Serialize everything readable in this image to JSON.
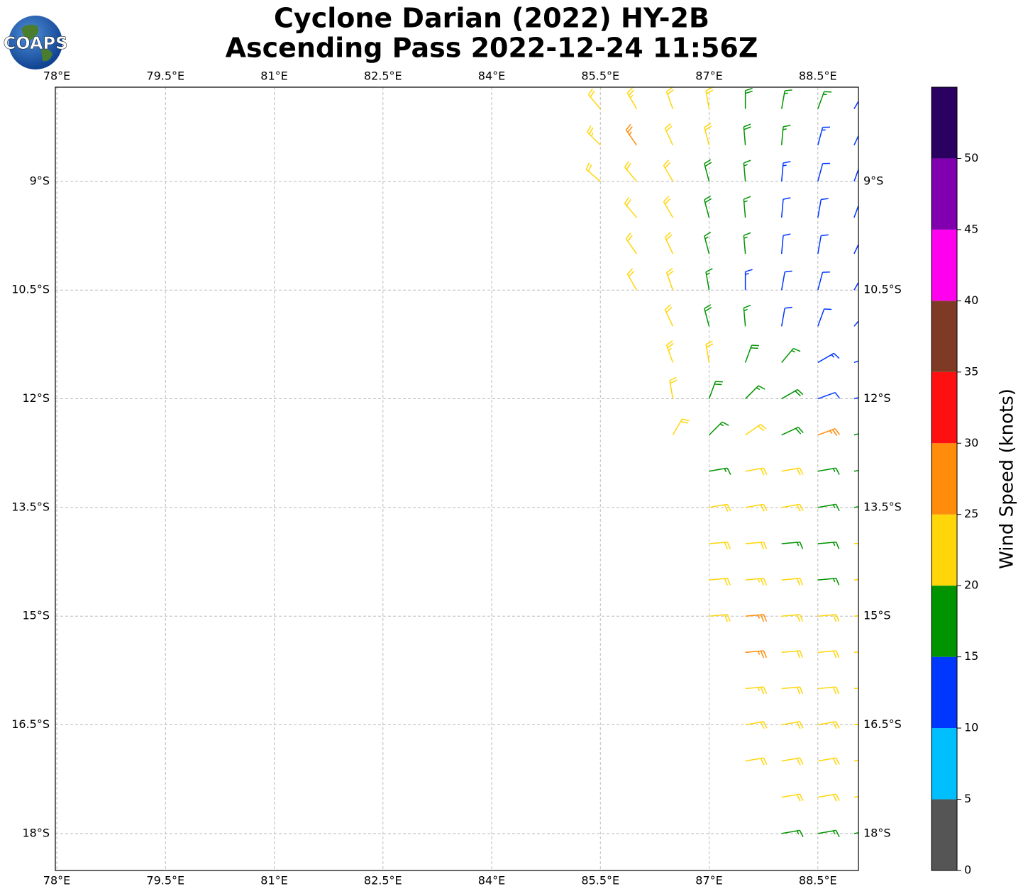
{
  "header": {
    "title": "Cyclone Darian (2022) HY-2B",
    "subtitle": "Ascending Pass 2022-12-24 11:56Z",
    "logo": "COAPS"
  },
  "map": {
    "xlim": [
      77.98,
      89.06
    ],
    "ylim": [
      -18.51,
      -7.7
    ],
    "xticks": [
      {
        "value": 78,
        "label": "78°E"
      },
      {
        "value": 79.5,
        "label": "79.5°E"
      },
      {
        "value": 81,
        "label": "81°E"
      },
      {
        "value": 82.5,
        "label": "82.5°E"
      },
      {
        "value": 84,
        "label": "84°E"
      },
      {
        "value": 85.5,
        "label": "85.5°E"
      },
      {
        "value": 87,
        "label": "87°E"
      },
      {
        "value": 88.5,
        "label": "88.5°E"
      }
    ],
    "yticks": [
      {
        "value": -9,
        "label": "9°S"
      },
      {
        "value": -10.5,
        "label": "10.5°S"
      },
      {
        "value": -12,
        "label": "12°S"
      },
      {
        "value": -13.5,
        "label": "13.5°S"
      },
      {
        "value": -15,
        "label": "15°S"
      },
      {
        "value": -16.5,
        "label": "16.5°S"
      },
      {
        "value": -18,
        "label": "18°S"
      }
    ],
    "grid": true,
    "barbs": [
      [
        85.5,
        -8,
        22,
        320
      ],
      [
        86,
        -8,
        23,
        330
      ],
      [
        86.5,
        -8,
        22,
        340
      ],
      [
        87,
        -8,
        20,
        350
      ],
      [
        87.5,
        -8,
        18,
        0
      ],
      [
        88,
        -8,
        17,
        10
      ],
      [
        88.5,
        -8,
        16,
        20
      ],
      [
        89,
        -8,
        14,
        30
      ],
      [
        85.5,
        -8.5,
        23,
        315
      ],
      [
        86,
        -8.5,
        27,
        325
      ],
      [
        86.5,
        -8.5,
        22,
        335
      ],
      [
        87,
        -8.5,
        21,
        345
      ],
      [
        87.5,
        -8.5,
        18,
        355
      ],
      [
        88,
        -8.5,
        17,
        5
      ],
      [
        88.5,
        -8.5,
        14,
        15
      ],
      [
        89,
        -8.5,
        13,
        25
      ],
      [
        85.5,
        -9,
        22,
        310
      ],
      [
        86,
        -9,
        22,
        320
      ],
      [
        86.5,
        -9,
        22,
        330
      ],
      [
        87,
        -9,
        18,
        345
      ],
      [
        87.5,
        -9,
        17,
        355
      ],
      [
        88,
        -9,
        13,
        5
      ],
      [
        88.5,
        -9,
        12,
        15
      ],
      [
        89,
        -9,
        12,
        20
      ],
      [
        86,
        -9.5,
        22,
        320
      ],
      [
        86.5,
        -9.5,
        22,
        330
      ],
      [
        87,
        -9.5,
        18,
        345
      ],
      [
        87.5,
        -9.5,
        17,
        355
      ],
      [
        88,
        -9.5,
        12,
        5
      ],
      [
        88.5,
        -9.5,
        12,
        10
      ],
      [
        89,
        -9.5,
        12,
        20
      ],
      [
        86,
        -10,
        21,
        325
      ],
      [
        86.5,
        -10,
        22,
        335
      ],
      [
        87,
        -10,
        17,
        345
      ],
      [
        87.5,
        -10,
        16,
        355
      ],
      [
        88,
        -10,
        12,
        5
      ],
      [
        88.5,
        -10,
        11,
        10
      ],
      [
        89,
        -10,
        12,
        25
      ],
      [
        86,
        -10.5,
        22,
        330
      ],
      [
        86.5,
        -10.5,
        21,
        340
      ],
      [
        87,
        -10.5,
        17,
        350
      ],
      [
        87.5,
        -10.5,
        13,
        0
      ],
      [
        88,
        -10.5,
        12,
        10
      ],
      [
        88.5,
        -10.5,
        11,
        15
      ],
      [
        89,
        -10.5,
        13,
        30
      ],
      [
        86.5,
        -11,
        22,
        335
      ],
      [
        87,
        -11,
        18,
        345
      ],
      [
        87.5,
        -11,
        17,
        355
      ],
      [
        88,
        -11,
        12,
        10
      ],
      [
        88.5,
        -11,
        11,
        20
      ],
      [
        89,
        -11,
        12,
        40
      ],
      [
        86.5,
        -11.5,
        23,
        340
      ],
      [
        87,
        -11.5,
        21,
        350
      ],
      [
        87.5,
        -11.5,
        18,
        20
      ],
      [
        88,
        -11.5,
        17,
        40
      ],
      [
        88.5,
        -11.5,
        13,
        60
      ],
      [
        89,
        -11.5,
        12,
        70
      ],
      [
        86.5,
        -12,
        22,
        350
      ],
      [
        87,
        -12,
        18,
        20
      ],
      [
        87.5,
        -12,
        17,
        45
      ],
      [
        88,
        -12,
        18,
        60
      ],
      [
        88.5,
        -12,
        12,
        70
      ],
      [
        89,
        -12,
        13,
        75
      ],
      [
        86.5,
        -12.5,
        22,
        30
      ],
      [
        87,
        -12.5,
        17,
        45
      ],
      [
        87.5,
        -12.5,
        22,
        55
      ],
      [
        88,
        -12.5,
        18,
        65
      ],
      [
        88.5,
        -12.5,
        27,
        70
      ],
      [
        89,
        -12.5,
        17,
        75
      ],
      [
        87,
        -13,
        17,
        80
      ],
      [
        87.5,
        -13,
        22,
        80
      ],
      [
        88,
        -13,
        21,
        80
      ],
      [
        88.5,
        -13,
        17,
        80
      ],
      [
        89,
        -13,
        16,
        80
      ],
      [
        87,
        -13.5,
        22,
        80
      ],
      [
        87.5,
        -13.5,
        22,
        80
      ],
      [
        88,
        -13.5,
        21,
        80
      ],
      [
        88.5,
        -13.5,
        17,
        80
      ],
      [
        89,
        -13.5,
        17,
        80
      ],
      [
        87,
        -14,
        22,
        85
      ],
      [
        87.5,
        -14,
        22,
        85
      ],
      [
        88,
        -14,
        17,
        85
      ],
      [
        88.5,
        -14,
        17,
        85
      ],
      [
        89,
        -14,
        22,
        85
      ],
      [
        87,
        -14.5,
        22,
        85
      ],
      [
        87.5,
        -14.5,
        23,
        85
      ],
      [
        88,
        -14.5,
        22,
        85
      ],
      [
        88.5,
        -14.5,
        17,
        85
      ],
      [
        89,
        -14.5,
        22,
        85
      ],
      [
        87,
        -15,
        22,
        85
      ],
      [
        87.5,
        -15,
        27,
        85
      ],
      [
        88,
        -15,
        22,
        85
      ],
      [
        88.5,
        -15,
        22,
        85
      ],
      [
        89,
        -15,
        22,
        85
      ],
      [
        87.5,
        -15.5,
        27,
        85
      ],
      [
        88,
        -15.5,
        22,
        85
      ],
      [
        88.5,
        -15.5,
        22,
        85
      ],
      [
        89,
        -15.5,
        22,
        85
      ],
      [
        87.5,
        -16,
        23,
        85
      ],
      [
        88,
        -16,
        22,
        85
      ],
      [
        88.5,
        -16,
        22,
        85
      ],
      [
        89,
        -16,
        22,
        85
      ],
      [
        87.5,
        -16.5,
        22,
        80
      ],
      [
        88,
        -16.5,
        22,
        80
      ],
      [
        88.5,
        -16.5,
        22,
        80
      ],
      [
        89,
        -16.5,
        22,
        80
      ],
      [
        87.5,
        -17,
        22,
        80
      ],
      [
        88,
        -17,
        22,
        80
      ],
      [
        88.5,
        -17,
        22,
        80
      ],
      [
        89,
        -17,
        22,
        80
      ],
      [
        88,
        -17.5,
        22,
        80
      ],
      [
        88.5,
        -17.5,
        22,
        80
      ],
      [
        89,
        -17.5,
        22,
        80
      ],
      [
        88,
        -18,
        17,
        80
      ],
      [
        88.5,
        -18,
        17,
        80
      ],
      [
        89,
        -18,
        17,
        80
      ]
    ]
  },
  "colorbar": {
    "label": "Wind Speed (knots)",
    "lim": [
      0,
      55
    ],
    "ticks": [
      0,
      5,
      10,
      15,
      20,
      25,
      30,
      35,
      40,
      45,
      50
    ],
    "bins": [
      0,
      5,
      10,
      15,
      20,
      25,
      30,
      35,
      40,
      45,
      50,
      55
    ],
    "colors": [
      "#555555",
      "#00bfff",
      "#0037ff",
      "#009400",
      "#ffd60a",
      "#ff8c0a",
      "#ff1010",
      "#7f3a25",
      "#ff00ee",
      "#8000b0",
      "#2a0060"
    ]
  }
}
